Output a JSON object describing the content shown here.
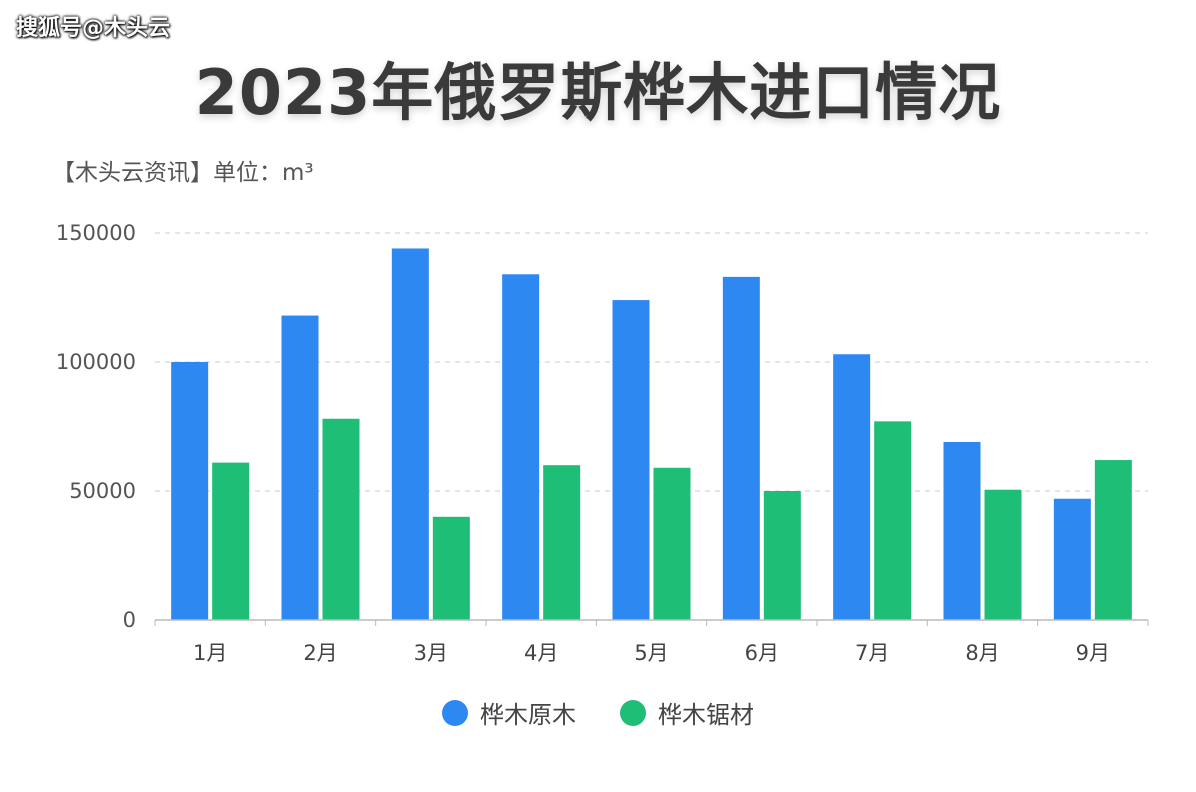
{
  "watermark": "搜狐号@木头云",
  "colors": {
    "series1": "#2d88f2",
    "series2": "#1fbe77"
  },
  "chart_data": {
    "type": "bar",
    "title": "2023年俄罗斯桦木进口情况",
    "subtitle": "【木头云资讯】单位：m³",
    "categories": [
      "1月",
      "2月",
      "3月",
      "4月",
      "5月",
      "6月",
      "7月",
      "8月",
      "9月"
    ],
    "series": [
      {
        "name": "桦木原木",
        "values": [
          100000,
          118000,
          144000,
          134000,
          124000,
          133000,
          103000,
          69000,
          47000
        ]
      },
      {
        "name": "桦木锯材",
        "values": [
          61000,
          78000,
          40000,
          60000,
          59000,
          50000,
          77000,
          50500,
          62000
        ]
      }
    ],
    "yticks": [
      "0",
      "50000",
      "100000",
      "150000"
    ],
    "ylim": [
      0,
      150000
    ],
    "grid": true,
    "legend": "bottom-center"
  }
}
